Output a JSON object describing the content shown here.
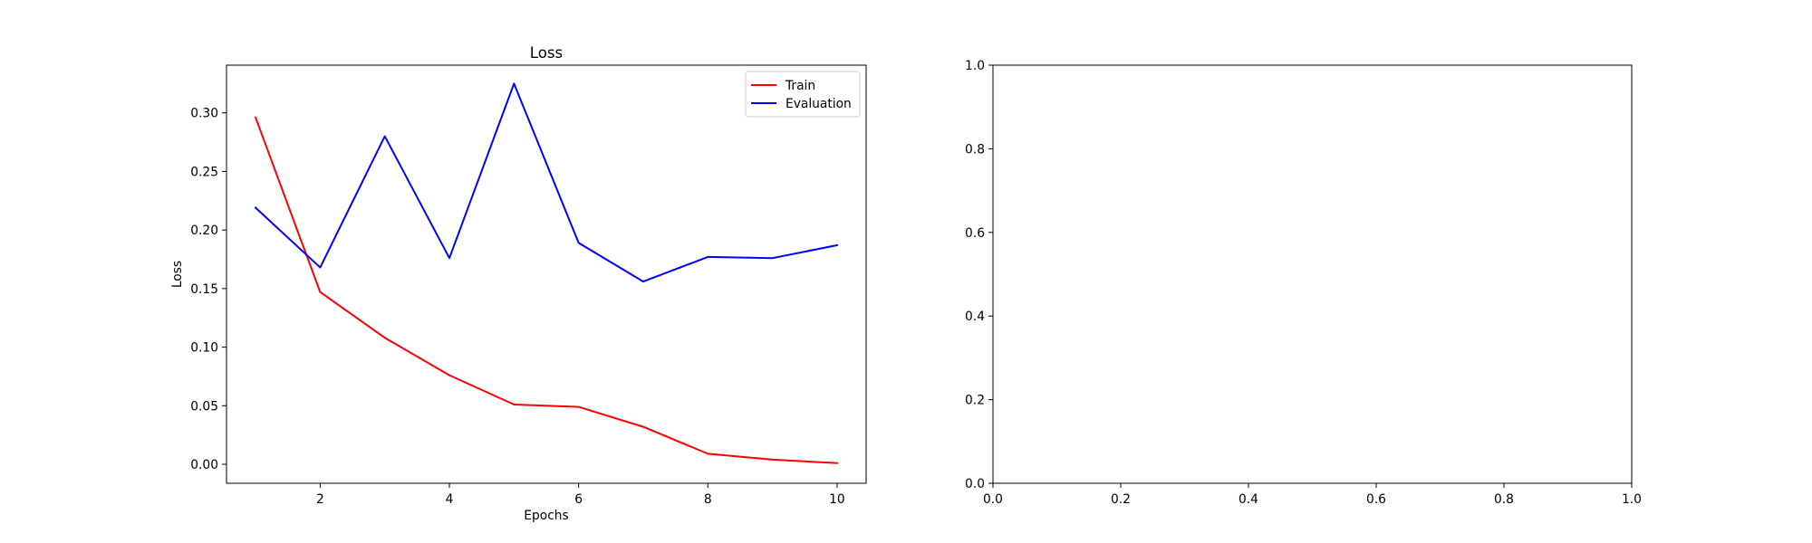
{
  "chart_data": [
    {
      "type": "line",
      "title": "Loss",
      "xlabel": "Epochs",
      "ylabel": "Loss",
      "x": [
        1,
        2,
        3,
        4,
        5,
        6,
        7,
        8,
        9,
        10
      ],
      "xlim": [
        0.55,
        10.45
      ],
      "ylim": [
        -0.0162,
        0.3407
      ],
      "xticks": [
        2,
        4,
        6,
        8,
        10
      ],
      "xtick_labels": [
        "2",
        "4",
        "6",
        "8",
        "10"
      ],
      "yticks": [
        0.0,
        0.05,
        0.1,
        0.15,
        0.2,
        0.25,
        0.3
      ],
      "ytick_labels": [
        "0.00",
        "0.05",
        "0.10",
        "0.15",
        "0.20",
        "0.25",
        "0.30"
      ],
      "grid": false,
      "legend": "top-right",
      "series": [
        {
          "name": "Train",
          "color": "#ff0000",
          "values": [
            0.296,
            0.147,
            0.108,
            0.076,
            0.051,
            0.049,
            0.032,
            0.009,
            0.004,
            0.001
          ]
        },
        {
          "name": "Evaluation",
          "color": "#0000ff",
          "values": [
            0.219,
            0.168,
            0.28,
            0.176,
            0.325,
            0.189,
            0.156,
            0.177,
            0.176,
            0.187
          ]
        }
      ]
    },
    {
      "type": "line",
      "title": "",
      "xlabel": "",
      "ylabel": "",
      "xlim": [
        0.0,
        1.0
      ],
      "ylim": [
        0.0,
        1.0
      ],
      "xticks": [
        0.0,
        0.2,
        0.4,
        0.6,
        0.8,
        1.0
      ],
      "xtick_labels": [
        "0.0",
        "0.2",
        "0.4",
        "0.6",
        "0.8",
        "1.0"
      ],
      "yticks": [
        0.0,
        0.2,
        0.4,
        0.6,
        0.8,
        1.0
      ],
      "ytick_labels": [
        "0.0",
        "0.2",
        "0.4",
        "0.6",
        "0.8",
        "1.0"
      ],
      "grid": false,
      "series": []
    }
  ]
}
